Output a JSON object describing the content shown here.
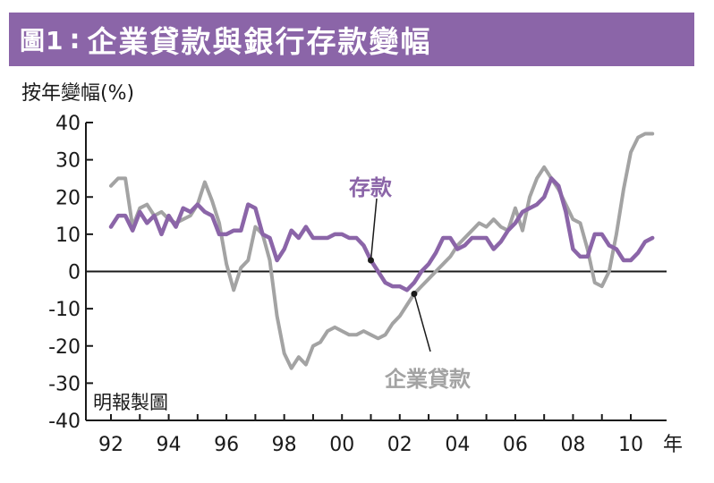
{
  "figure": {
    "label": "圖1",
    "separator": ":",
    "title": "企業貸款與銀行存款變幅"
  },
  "source_note": "明報製圖",
  "colors": {
    "title_bar": "#8b65a8",
    "deposits": "#8b65a8",
    "loans": "#a3a3a3",
    "axis": "#1a1a1a"
  },
  "chart_data": {
    "type": "line",
    "ylabel": "按年變幅(%)",
    "xlabel": "",
    "x_unit_label": "年",
    "ylim": [
      -40,
      40
    ],
    "yticks": [
      40,
      30,
      20,
      10,
      0,
      -10,
      -20,
      -30,
      -40
    ],
    "ytick_labels": [
      "40",
      "30",
      "20",
      "10",
      "0",
      "-10",
      "-20",
      "-30",
      "-40"
    ],
    "xlim": [
      1992,
      2010.9
    ],
    "xticks": [
      1992,
      1994,
      1996,
      1998,
      2000,
      2002,
      2004,
      2006,
      2008,
      2010
    ],
    "xtick_labels": [
      "92",
      "94",
      "96",
      "98",
      "00",
      "02",
      "04",
      "06",
      "08",
      "10"
    ],
    "grid": false,
    "series": [
      {
        "name": "存款",
        "color": "#8b65a8",
        "x": [
          1992.0,
          1992.25,
          1992.5,
          1992.75,
          1993.0,
          1993.25,
          1993.5,
          1993.75,
          1994.0,
          1994.25,
          1994.5,
          1994.75,
          1995.0,
          1995.25,
          1995.5,
          1995.75,
          1996.0,
          1996.25,
          1996.5,
          1996.75,
          1997.0,
          1997.25,
          1997.5,
          1997.75,
          1998.0,
          1998.25,
          1998.5,
          1998.75,
          1999.0,
          1999.25,
          1999.5,
          1999.75,
          2000.0,
          2000.25,
          2000.5,
          2000.75,
          2001.0,
          2001.25,
          2001.5,
          2001.75,
          2002.0,
          2002.25,
          2002.5,
          2002.75,
          2003.0,
          2003.25,
          2003.5,
          2003.75,
          2004.0,
          2004.25,
          2004.5,
          2004.75,
          2005.0,
          2005.25,
          2005.5,
          2005.75,
          2006.0,
          2006.25,
          2006.5,
          2006.75,
          2007.0,
          2007.25,
          2007.5,
          2007.75,
          2008.0,
          2008.25,
          2008.5,
          2008.75,
          2009.0,
          2009.25,
          2009.5,
          2009.75,
          2010.0,
          2010.25,
          2010.5,
          2010.75
        ],
        "values": [
          12,
          15,
          15,
          11,
          16,
          13,
          15,
          10,
          15,
          12,
          17,
          16,
          18,
          16,
          15,
          10,
          10,
          11,
          11,
          18,
          17,
          10,
          9,
          3,
          6,
          11,
          9,
          12,
          9,
          9,
          9,
          10,
          10,
          9,
          9,
          7,
          3,
          0,
          -3,
          -4,
          -4,
          -5,
          -3,
          0,
          2,
          5,
          9,
          9,
          6,
          7,
          9,
          9,
          9,
          6,
          8,
          11,
          13,
          16,
          17,
          18,
          20,
          25,
          23,
          16,
          6,
          4,
          4,
          10,
          10,
          7,
          6,
          3,
          3,
          5,
          8,
          9
        ]
      },
      {
        "name": "企業貸款",
        "color": "#a3a3a3",
        "x": [
          1992.0,
          1992.25,
          1992.5,
          1992.75,
          1993.0,
          1993.25,
          1993.5,
          1993.75,
          1994.0,
          1994.25,
          1994.5,
          1994.75,
          1995.0,
          1995.25,
          1995.5,
          1995.75,
          1996.0,
          1996.25,
          1996.5,
          1996.75,
          1997.0,
          1997.25,
          1997.5,
          1997.75,
          1998.0,
          1998.25,
          1998.5,
          1998.75,
          1999.0,
          1999.25,
          1999.5,
          1999.75,
          2000.0,
          2000.25,
          2000.5,
          2000.75,
          2001.0,
          2001.25,
          2001.5,
          2001.75,
          2002.0,
          2002.25,
          2002.5,
          2002.75,
          2003.0,
          2003.25,
          2003.5,
          2003.75,
          2004.0,
          2004.25,
          2004.5,
          2004.75,
          2005.0,
          2005.25,
          2005.5,
          2005.75,
          2006.0,
          2006.25,
          2006.5,
          2006.75,
          2007.0,
          2007.25,
          2007.5,
          2007.75,
          2008.0,
          2008.25,
          2008.5,
          2008.75,
          2009.0,
          2009.25,
          2009.5,
          2009.75,
          2010.0,
          2010.25,
          2010.5,
          2010.75
        ],
        "values": [
          23,
          25,
          25,
          12,
          17,
          18,
          15,
          16,
          14,
          13,
          14,
          15,
          18,
          24,
          19,
          13,
          2,
          -5,
          1,
          3,
          12,
          10,
          3,
          -12,
          -22,
          -26,
          -23,
          -25,
          -20,
          -19,
          -16,
          -15,
          -16,
          -17,
          -17,
          -16,
          -17,
          -18,
          -17,
          -14,
          -12,
          -9,
          -6,
          -4,
          -2,
          0,
          2,
          4,
          7,
          9,
          11,
          13,
          12,
          14,
          12,
          11,
          17,
          11,
          20,
          25,
          28,
          25,
          22,
          18,
          14,
          13,
          6,
          -3,
          -4,
          0,
          10,
          22,
          32,
          36,
          37,
          37
        ]
      }
    ],
    "annotations": [
      "存款",
      "企業貸款"
    ]
  }
}
